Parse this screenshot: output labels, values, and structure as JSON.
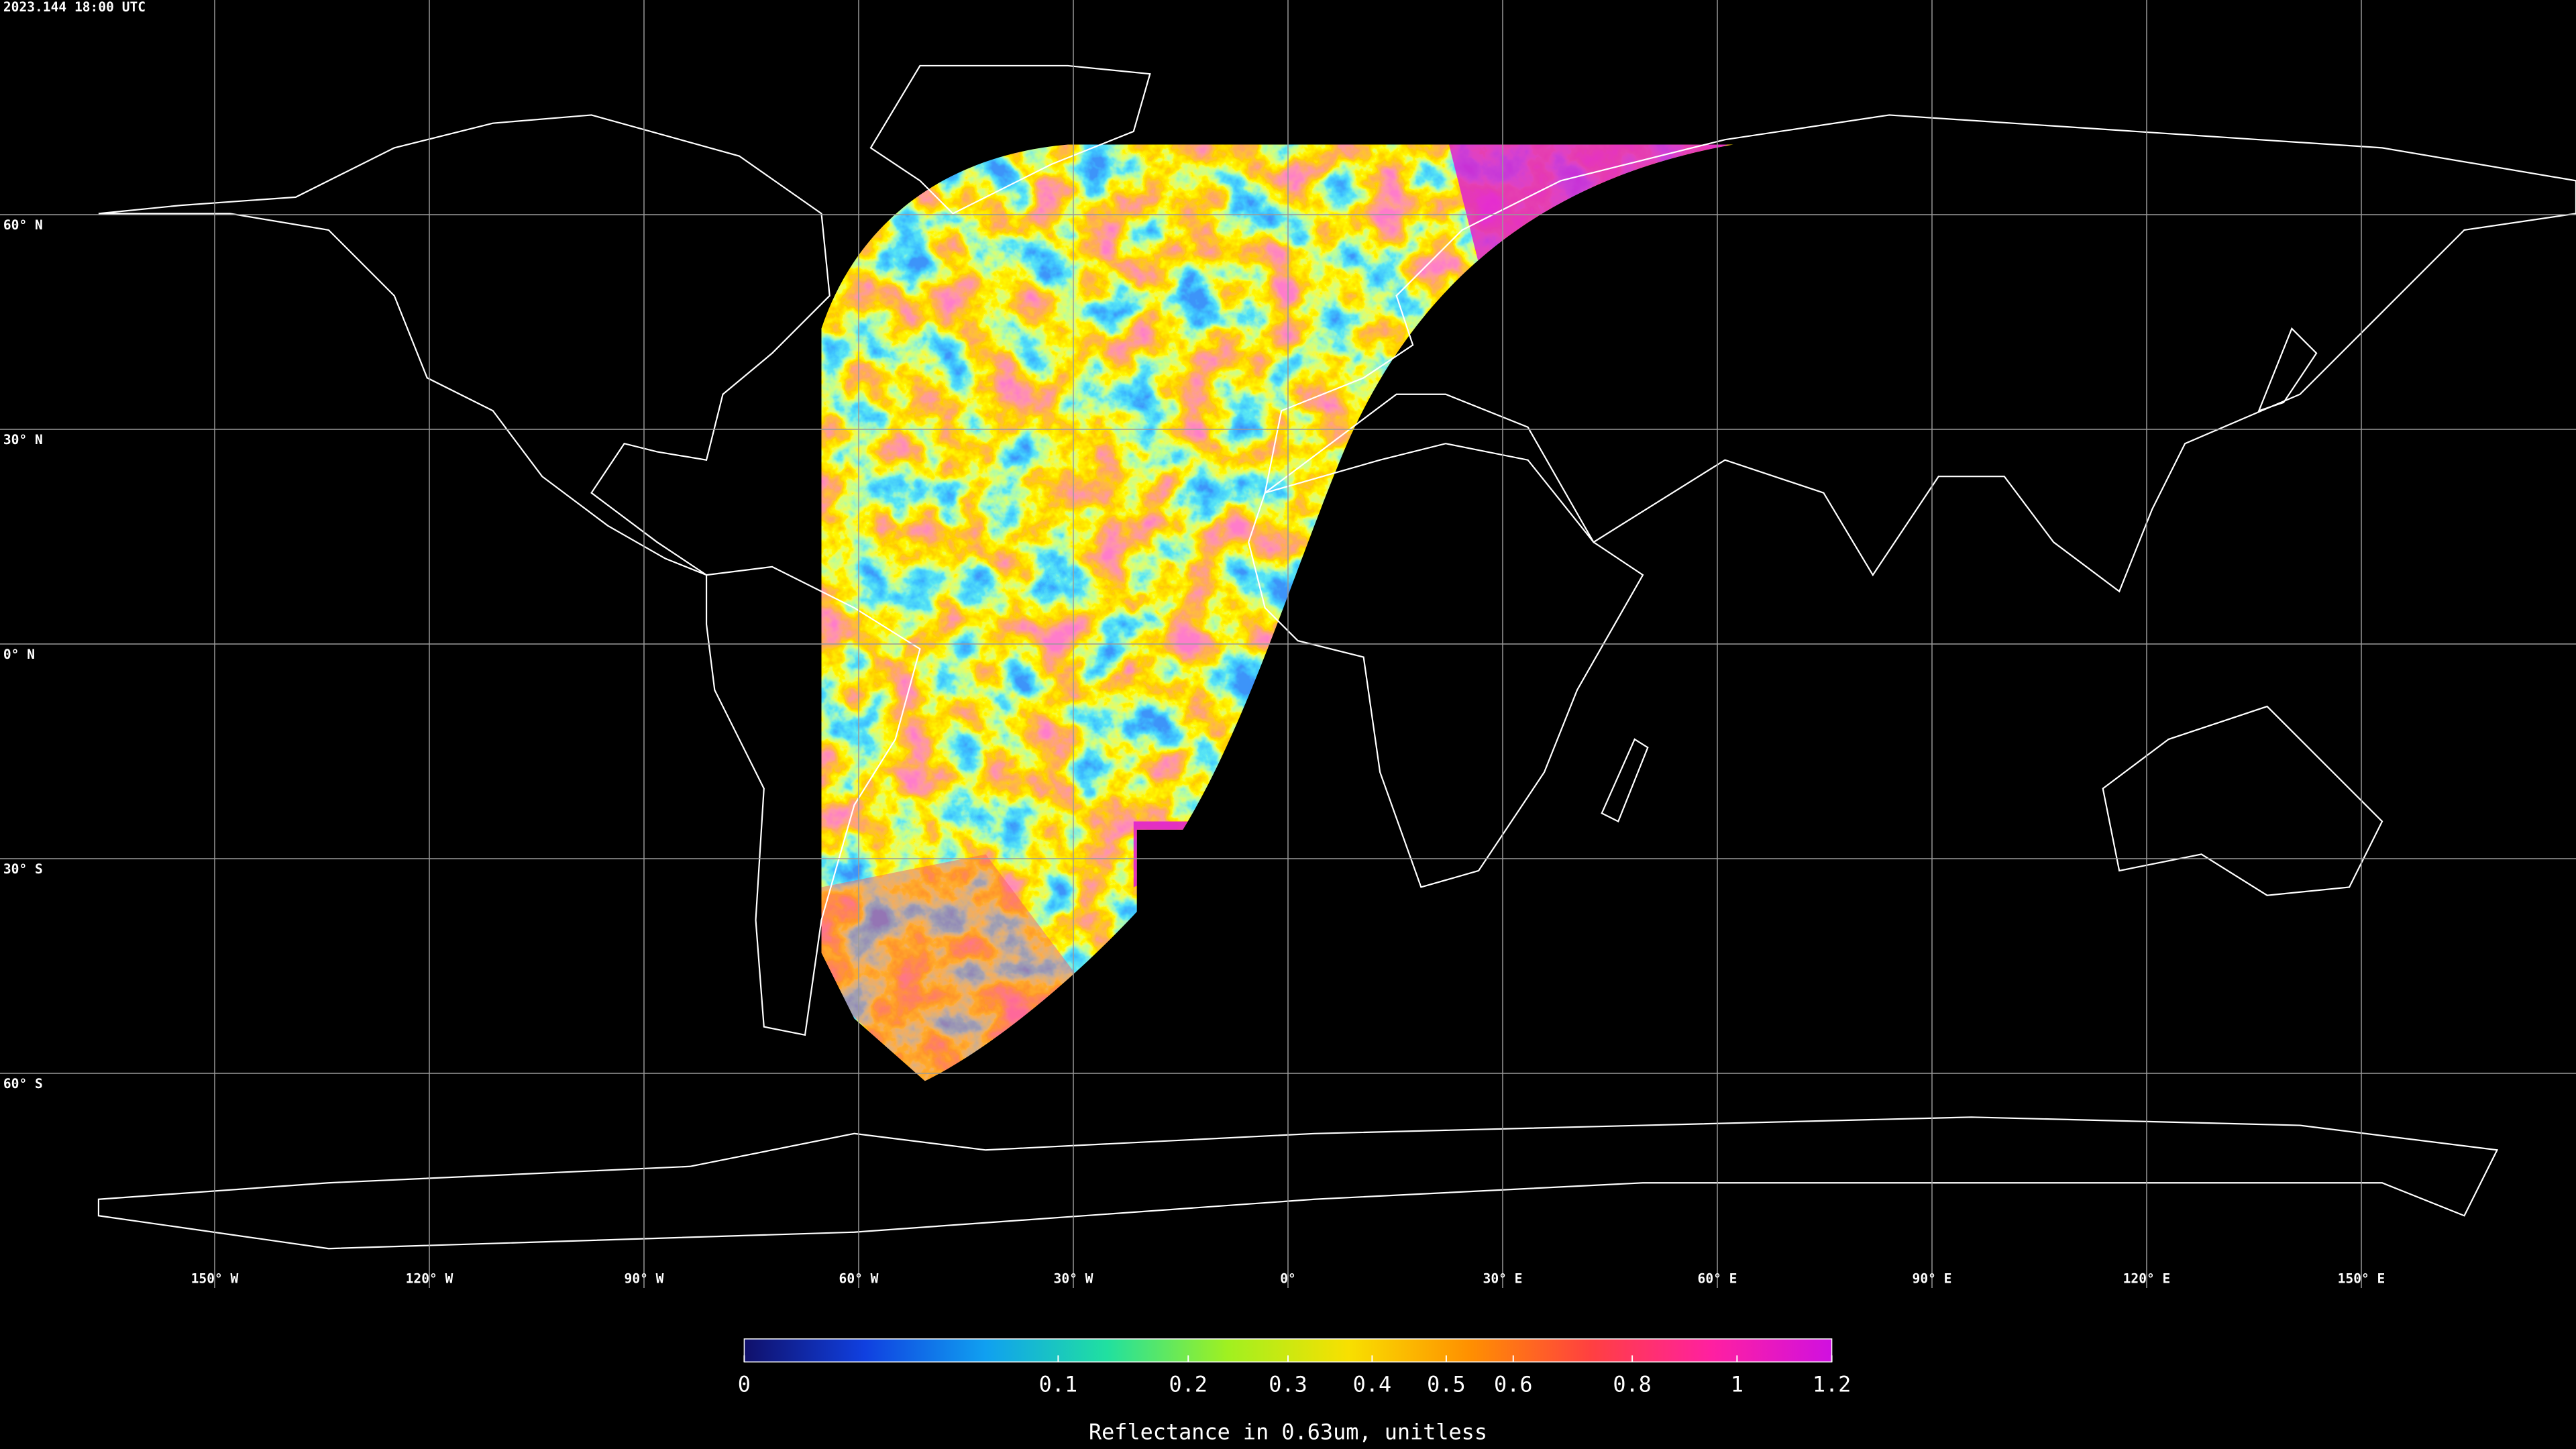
{
  "timestamp": "2023.144 18:00 UTC",
  "map": {
    "lon_range": [
      -180,
      180
    ],
    "lat_range": [
      -90,
      90
    ],
    "grid": true,
    "grid_color": "#9a9a9a",
    "coast_color": "#ffffff",
    "lat_lines": [
      {
        "value": 60,
        "label": "60° N"
      },
      {
        "value": 30,
        "label": "30° N"
      },
      {
        "value": 0,
        "label": "0° N"
      },
      {
        "value": -30,
        "label": "30° S"
      },
      {
        "value": -60,
        "label": "60° S"
      }
    ],
    "lon_lines": [
      {
        "value": -150,
        "label": "150° W"
      },
      {
        "value": -120,
        "label": "120° W"
      },
      {
        "value": -90,
        "label": "90° W"
      },
      {
        "value": -60,
        "label": "60° W"
      },
      {
        "value": -30,
        "label": "30° W"
      },
      {
        "value": 0,
        "label": "0°"
      },
      {
        "value": 30,
        "label": "30° E"
      },
      {
        "value": 60,
        "label": "60° E"
      },
      {
        "value": 90,
        "label": "90° E"
      },
      {
        "value": 120,
        "label": "120° E"
      },
      {
        "value": 150,
        "label": "150° E"
      }
    ]
  },
  "colorbar": {
    "range": [
      0,
      1.2
    ],
    "scale": "sqrt",
    "colormap": [
      "#10106a",
      "#1040e0",
      "#10a0f0",
      "#20e0a0",
      "#a0f020",
      "#f8e000",
      "#ff9000",
      "#ff4040",
      "#ff20a0",
      "#d010e0"
    ],
    "ticks": [
      0,
      0.1,
      0.2,
      0.3,
      0.4,
      0.5,
      0.6,
      0.8,
      1,
      1.2
    ],
    "label": "Reflectance in 0.63um, unitless"
  }
}
